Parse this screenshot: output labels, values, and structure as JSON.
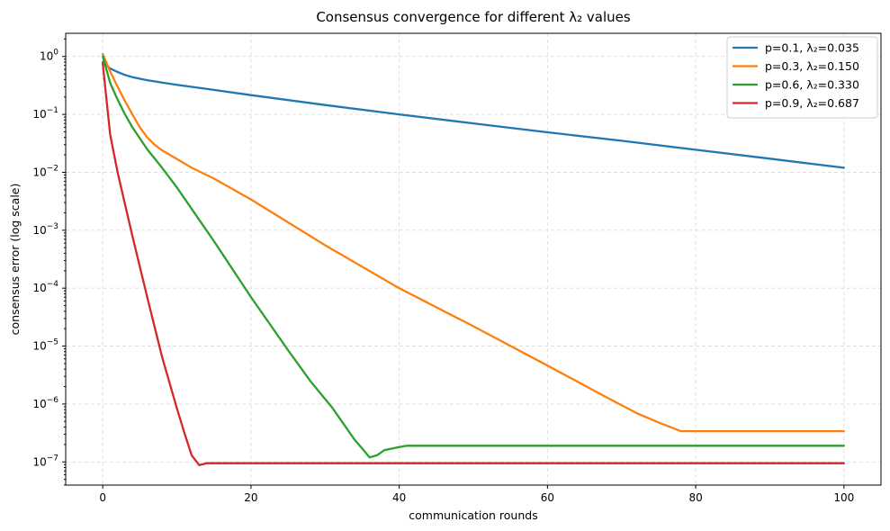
{
  "chart_data": {
    "type": "line",
    "title": "Consensus convergence for different λ₂ values",
    "xlabel": "communication rounds",
    "ylabel": "consensus error (log scale)",
    "xscale": "linear",
    "yscale": "log",
    "xlim": [
      -5,
      105
    ],
    "ylim_exp": [
      -7.4,
      0.4
    ],
    "xticks": [
      0,
      20,
      40,
      60,
      80,
      100
    ],
    "xtick_labels": [
      "0",
      "20",
      "40",
      "60",
      "80",
      "100"
    ],
    "yticks_exp": [
      0,
      -1,
      -2,
      -3,
      -4,
      -5,
      -6,
      -7
    ],
    "ytick_labels": [
      {
        "base": "10",
        "exp": "0"
      },
      {
        "base": "10",
        "exp": "−1"
      },
      {
        "base": "10",
        "exp": "−2"
      },
      {
        "base": "10",
        "exp": "−3"
      },
      {
        "base": "10",
        "exp": "−4"
      },
      {
        "base": "10",
        "exp": "−5"
      },
      {
        "base": "10",
        "exp": "−6"
      },
      {
        "base": "10",
        "exp": "−7"
      }
    ],
    "grid": true,
    "legend_position": "top-right",
    "series": [
      {
        "name": "p=0.1, λ₂=0.035",
        "color": "#1f77b4",
        "x": [
          0,
          1,
          2,
          3,
          4,
          6,
          8,
          10,
          15,
          20,
          30,
          40,
          50,
          60,
          70,
          80,
          90,
          100
        ],
        "y": [
          0.8,
          0.62,
          0.54,
          0.48,
          0.44,
          0.39,
          0.355,
          0.325,
          0.265,
          0.215,
          0.145,
          0.1,
          0.07,
          0.049,
          0.035,
          0.0245,
          0.0172,
          0.012
        ]
      },
      {
        "name": "p=0.3, λ₂=0.150",
        "color": "#ff7f0e",
        "x": [
          0,
          1,
          2,
          3,
          4,
          5,
          6,
          7,
          8,
          10,
          12,
          15,
          20,
          30,
          40,
          50,
          60,
          68,
          72,
          75,
          78,
          80,
          90,
          100
        ],
        "y": [
          1.1,
          0.55,
          0.3,
          0.17,
          0.1,
          0.06,
          0.04,
          0.03,
          0.024,
          0.017,
          0.012,
          0.0078,
          0.0034,
          0.00055,
          0.0001,
          2.2e-05,
          4.6e-06,
          1.3e-06,
          7e-07,
          4.8e-07,
          3.4e-07,
          3.4e-07,
          3.4e-07,
          3.4e-07
        ]
      },
      {
        "name": "p=0.6, λ₂=0.330",
        "color": "#2ca02c",
        "x": [
          0,
          1,
          2,
          3,
          4,
          6,
          8,
          10,
          15,
          20,
          25,
          28,
          31,
          34,
          35,
          36,
          37,
          38,
          40,
          41,
          50,
          60,
          70,
          80,
          90,
          100
        ],
        "y": [
          1.0,
          0.35,
          0.18,
          0.1,
          0.06,
          0.025,
          0.012,
          0.0055,
          0.00065,
          7e-05,
          8.5e-06,
          2.5e-06,
          8.5e-07,
          2.4e-07,
          1.7e-07,
          1.2e-07,
          1.3e-07,
          1.6e-07,
          1.8e-07,
          1.9e-07,
          1.9e-07,
          1.9e-07,
          1.9e-07,
          1.9e-07,
          1.9e-07,
          1.9e-07
        ]
      },
      {
        "name": "p=0.9, λ₂=0.687",
        "color": "#d62728",
        "x": [
          0,
          1,
          2,
          3,
          4,
          6,
          8,
          10,
          11,
          12,
          13,
          14,
          15,
          20,
          40,
          60,
          80,
          100
        ],
        "y": [
          0.75,
          0.045,
          0.01,
          0.0028,
          0.0008,
          7e-05,
          6.5e-06,
          8.5e-07,
          3.2e-07,
          1.3e-07,
          8.8e-08,
          9.5e-08,
          9.5e-08,
          9.5e-08,
          9.5e-08,
          9.5e-08,
          9.5e-08,
          9.5e-08
        ]
      }
    ]
  }
}
